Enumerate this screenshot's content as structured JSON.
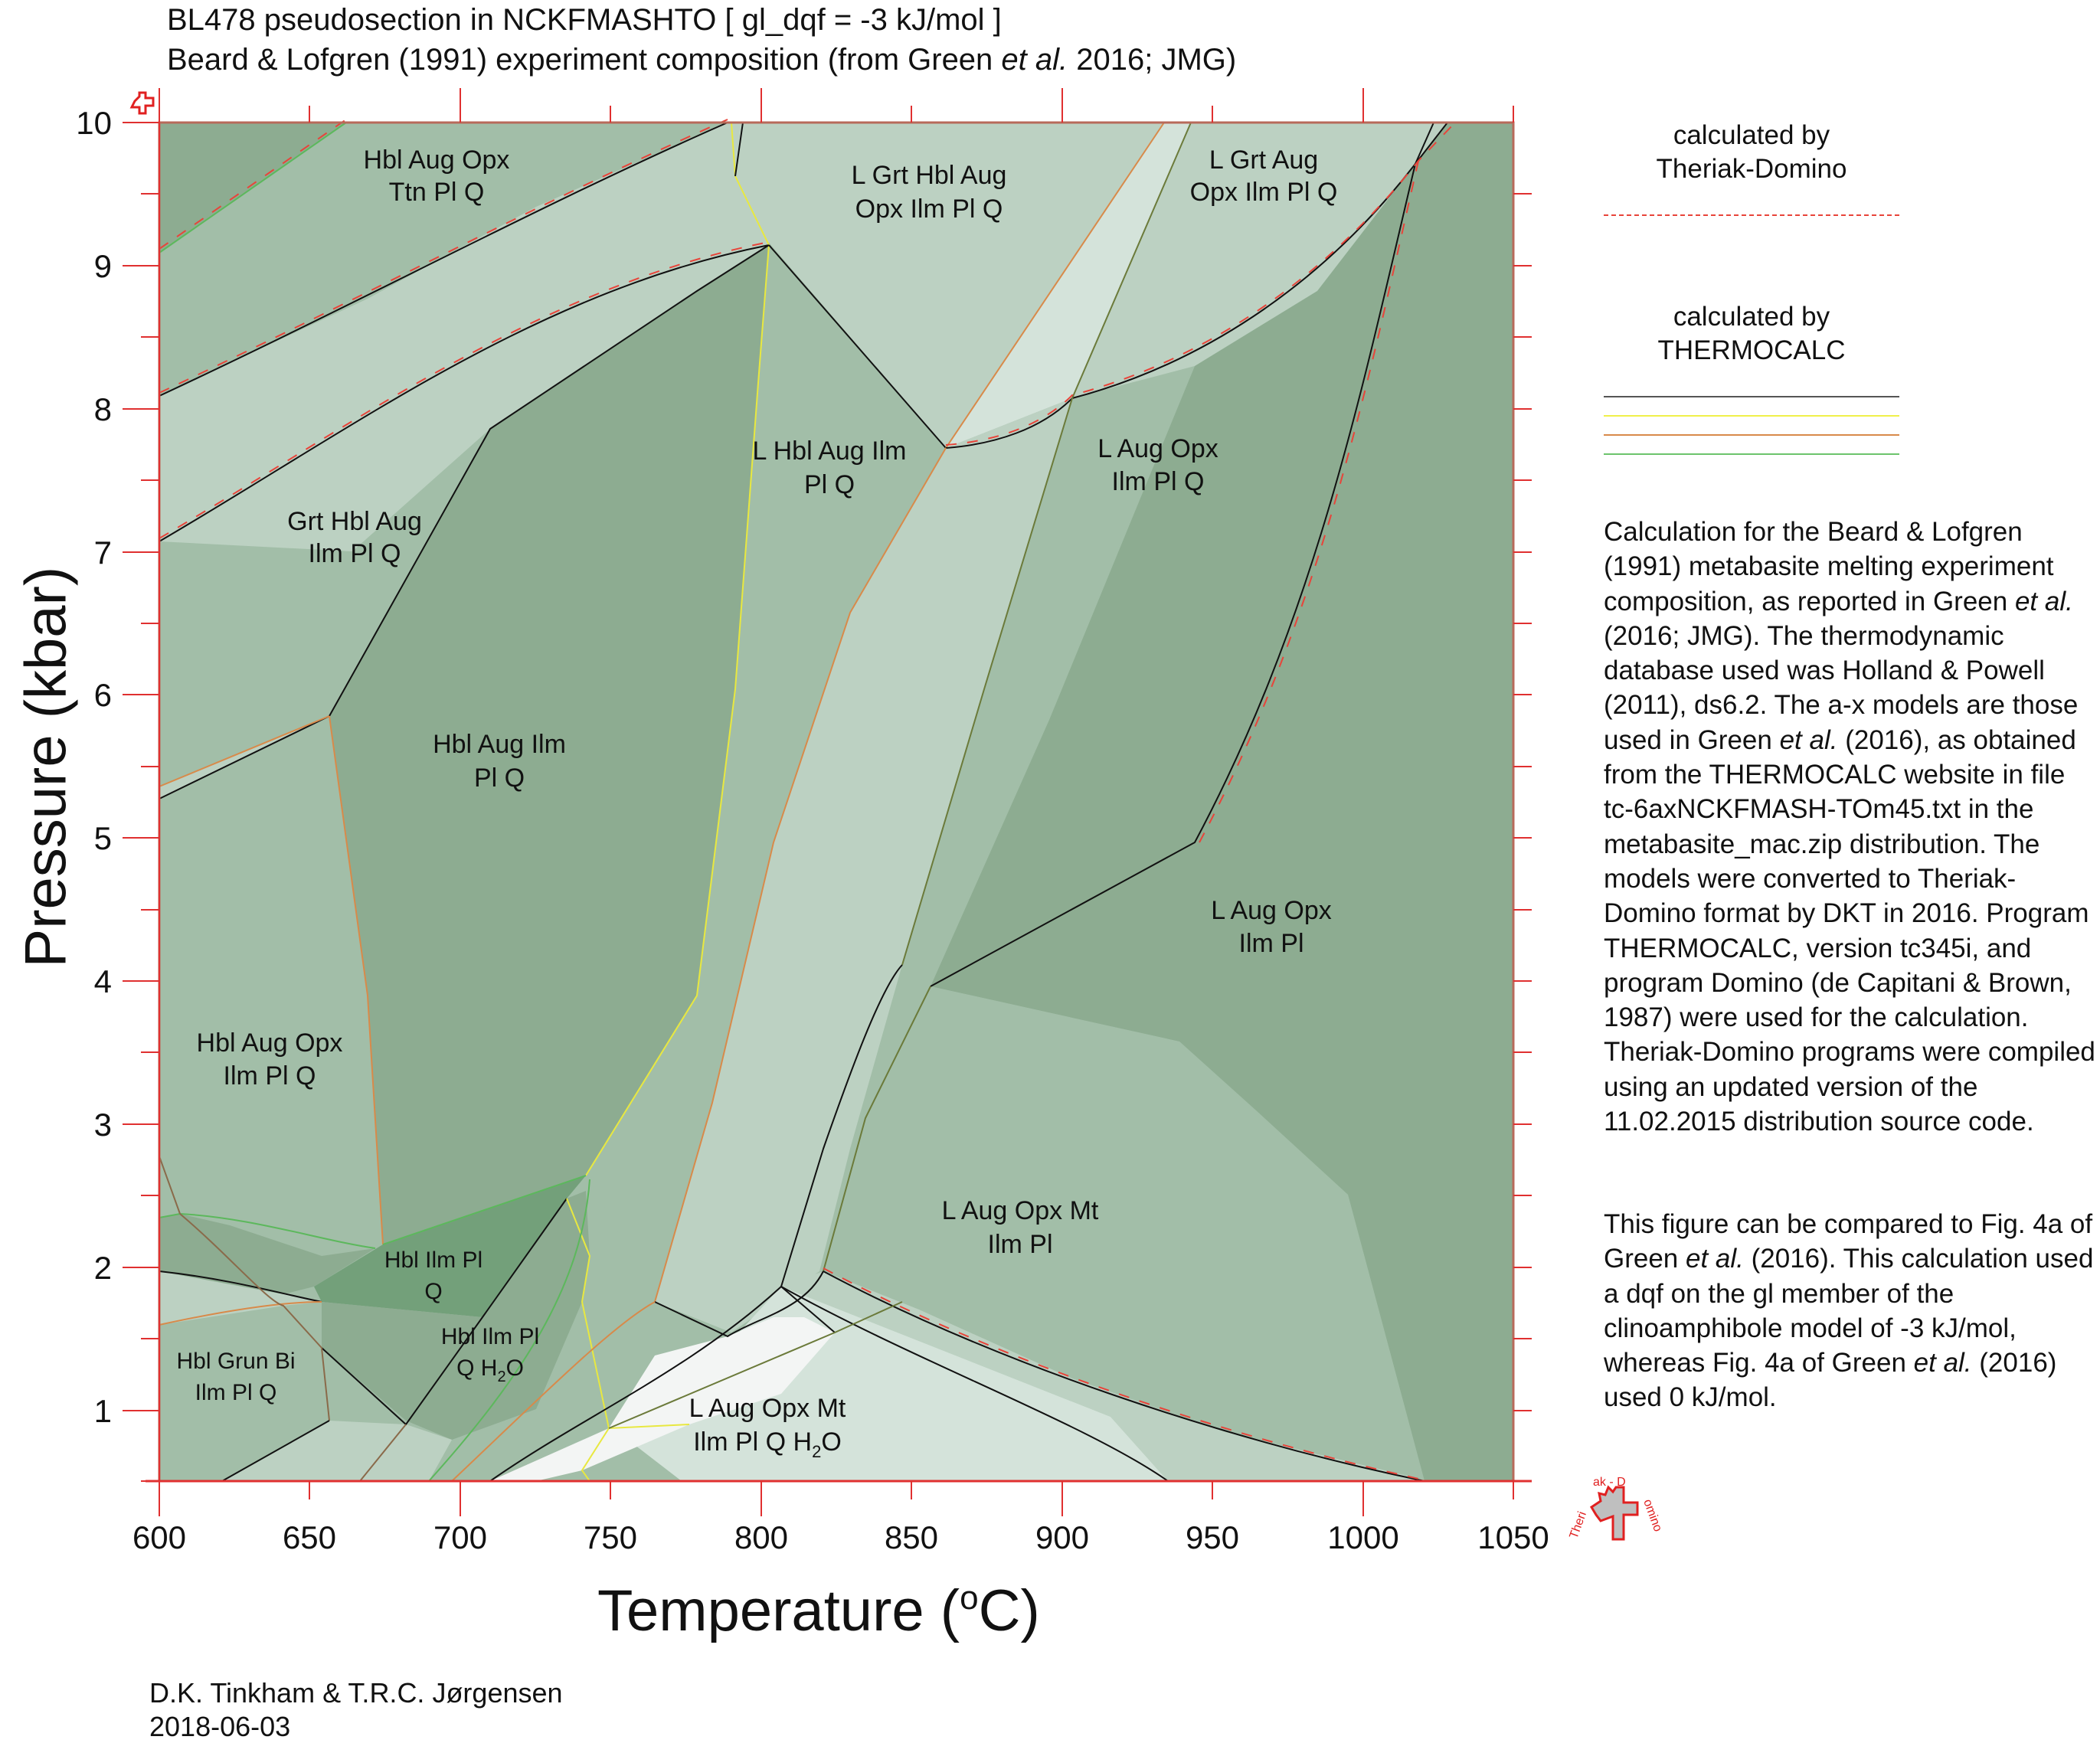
{
  "header": {
    "title_line1": "BL478 pseudosection in NCKFMASHTO [ gl_dqf = -3 kJ/mol ]",
    "title_line2_pre": "Beard & Lofgren (1991) experiment composition (from Green ",
    "title_line2_em": "et al.",
    "title_line2_post": " 2016; JMG)"
  },
  "axes": {
    "xlabel_pre": "Temperature (",
    "xlabel_sup": "o",
    "xlabel_post": "C)",
    "ylabel": "Pressure (kbar)"
  },
  "legend": {
    "td_title_line1": "calculated by",
    "td_title_line2": "Theriak-Domino",
    "tc_title_line1": "calculated by",
    "tc_title_line2": "THERMOCALC",
    "td_line_color": "#e8443a",
    "tc_line_colors": [
      "#555555",
      "#f0f04a",
      "#d88a4a",
      "#6cc46c"
    ]
  },
  "description": {
    "p1_parts": [
      {
        "t": "Calculation for the Beard & Lofgren (1991) metabasite melting experiment composition, as reported in Green "
      },
      {
        "t": "et al.",
        "em": true
      },
      {
        "t": " (2016; JMG). The thermodynamic database used was Holland & Powell (2011), ds6.2. The a-x models are those used in Green "
      },
      {
        "t": "et al.",
        "em": true
      },
      {
        "t": " (2016), as obtained from the THERMOCALC website in file tc-6axNCKFMASH-TOm45.txt in the metabasite_mac.zip distribution. The models were converted to Theriak-Domino format by DKT in 2016. Program THERMOCALC, version tc345i, and program Domino (de Capitani & Brown, 1987) were used for the calculation. Theriak-Domino programs were compiled using an updated version of the 11.02.2015 distribution source code."
      }
    ],
    "p2_parts": [
      {
        "t": "This figure can be compared to Fig. 4a of Green "
      },
      {
        "t": "et al.",
        "em": true
      },
      {
        "t": " (2016). This calculation used a dqf on the gl member of the clinoamphibole model of -3 kJ/mol, whereas Fig. 4a of Green "
      },
      {
        "t": "et al.",
        "em": true
      },
      {
        "t": " (2016) used 0 kJ/mol."
      }
    ]
  },
  "credits": {
    "authors": "D.K. Tinkham & T.R.C. Jørgensen",
    "date": "2018-06-03"
  },
  "logo": {
    "text": "Theriak-Domino",
    "color": "#e02020"
  },
  "colors": {
    "field_darkest": "#73a07a",
    "field_dark": "#8dac91",
    "field_mid": "#a2bea8",
    "field_light": "#bcd1c2",
    "field_lighter": "#d4e3da",
    "field_lightest": "#f3f5f4",
    "axis_red": "#e03030"
  },
  "chart_data": {
    "type": "phase-diagram",
    "title": "BL478 pseudosection in NCKFMASHTO [ gl_dqf = -3 kJ/mol ]",
    "subtitle": "Beard & Lofgren (1991) experiment composition (from Green et al. 2016; JMG)",
    "xlabel": "Temperature (oC)",
    "ylabel": "Pressure (kbar)",
    "xlim": [
      600,
      1050
    ],
    "ylim": [
      0.5,
      10
    ],
    "xticks": [
      600,
      650,
      700,
      750,
      800,
      850,
      900,
      950,
      1000,
      1050
    ],
    "yticks": [
      1,
      2,
      3,
      4,
      5,
      6,
      7,
      8,
      9,
      10
    ],
    "grid": false,
    "legend": [
      {
        "label": "calculated by Theriak-Domino",
        "style": "dashed",
        "color": "#e8443a"
      },
      {
        "label": "calculated by THERMOCALC",
        "style": "solid",
        "colors": [
          "#555555",
          "#f0f04a",
          "#d88a4a",
          "#6cc46c"
        ]
      }
    ],
    "field_labels": [
      {
        "label": "Hbl Aug Opx Ttn Pl Q",
        "T": 695,
        "P": 9.55
      },
      {
        "label": "L Grt Hbl Aug Opx Ilm Pl Q",
        "T": 855,
        "P": 9.3
      },
      {
        "label": "L Grt Aug Opx Ilm Pl Q",
        "T": 970,
        "P": 9.55
      },
      {
        "label": "Grt Hbl Aug Ilm Pl Q",
        "T": 665,
        "P": 7.25
      },
      {
        "label": "L Hbl Aug Ilm Pl Q",
        "T": 823,
        "P": 7.7
      },
      {
        "label": "L Aug Opx Ilm Pl Q",
        "T": 932,
        "P": 7.7
      },
      {
        "label": "Hbl Aug Ilm Pl Q",
        "T": 713,
        "P": 5.65
      },
      {
        "label": "L Aug Opx Ilm Pl",
        "T": 970,
        "P": 4.3
      },
      {
        "label": "Hbl Aug Opx Ilm Pl Q",
        "T": 637,
        "P": 3.0
      },
      {
        "label": "L Aug Opx Mt Ilm Pl",
        "T": 882,
        "P": 2.0
      },
      {
        "label": "Hbl Ilm Pl Q",
        "T": 690,
        "P": 1.9
      },
      {
        "label": "Hbl Ilm Pl Q H2O",
        "T": 710,
        "P": 1.35
      },
      {
        "label": "Hbl Grun Bi Ilm Pl Q",
        "T": 626,
        "P": 1.18
      },
      {
        "label": "L Aug Opx Mt Ilm Pl Q H2O",
        "T": 800,
        "P": 0.9
      }
    ],
    "boundaries": [
      {
        "points": [
          [
            600,
            9.02
          ],
          [
            662,
            10
          ]
        ],
        "color": "green"
      },
      {
        "points": [
          [
            600,
            8.07
          ],
          [
            690,
            8.75
          ],
          [
            790,
            9.62
          ],
          [
            842,
            10
          ]
        ],
        "color": "black"
      },
      {
        "points": [
          [
            600,
            7.07
          ],
          [
            700,
            8.2
          ],
          [
            790,
            9.3
          ],
          [
            803,
            9.15
          ]
        ],
        "color": "black"
      },
      {
        "points": [
          [
            788,
            10
          ],
          [
            790,
            9.6
          ],
          [
            803,
            9.15
          ],
          [
            800,
            8.3
          ],
          [
            785,
            6.4
          ],
          [
            760,
            3.8
          ],
          [
            742,
            2.65
          ]
        ],
        "color": "yellow"
      },
      {
        "points": [
          [
            795,
            10
          ],
          [
            790,
            9.6
          ]
        ],
        "color": "black"
      },
      {
        "points": [
          [
            803,
            9.15
          ],
          [
            865,
            7.75
          ]
        ],
        "color": "black"
      },
      {
        "points": [
          [
            865,
            7.75
          ],
          [
            932,
            10
          ]
        ],
        "color": "orange"
      },
      {
        "points": [
          [
            865,
            7.75
          ],
          [
            890,
            7.7
          ],
          [
            903,
            8.05
          ],
          [
            955,
            8.85
          ],
          [
            1016,
            9.68
          ],
          [
            1033,
            10
          ]
        ],
        "color": "black"
      },
      {
        "points": [
          [
            903,
            8.05
          ],
          [
            942,
            10
          ]
        ],
        "color": "darkolive"
      },
      {
        "points": [
          [
            1016,
            9.68
          ],
          [
            1025,
            10
          ]
        ],
        "color": "black"
      },
      {
        "points": [
          [
            1016,
            9.68
          ],
          [
            985,
            7.5
          ],
          [
            945,
            5.6
          ],
          [
            857,
            4.0
          ]
        ],
        "color": "black"
      },
      {
        "points": [
          [
            865,
            7.75
          ],
          [
            845,
            6.6
          ],
          [
            801,
            4.0
          ],
          [
            771,
            2.5
          ],
          [
            765,
            1.8
          ]
        ],
        "color": "orange"
      },
      {
        "points": [
          [
            803,
            9.15
          ],
          [
            780,
            8.0
          ],
          [
            695,
            6.2
          ],
          [
            656,
            5.85
          ]
        ],
        "color": "black"
      },
      {
        "points": [
          [
            600,
            5.32
          ],
          [
            656,
            5.85
          ]
        ],
        "color": "black"
      },
      {
        "points": [
          [
            600,
            5.42
          ],
          [
            656,
            5.85
          ]
        ],
        "color": "orange"
      },
      {
        "points": [
          [
            656,
            5.85
          ],
          [
            665,
            3.5
          ],
          [
            675,
            2.2
          ]
        ],
        "color": "orange"
      },
      {
        "points": [
          [
            675,
            2.2
          ],
          [
            742,
            2.65
          ]
        ],
        "color": "green"
      },
      {
        "points": [
          [
            738,
            2.55
          ],
          [
            718,
            1.85
          ],
          [
            683,
            1.45
          ],
          [
            656,
            1.0
          ]
        ],
        "color": "black"
      },
      {
        "points": [
          [
            857,
            4.0
          ],
          [
            842,
            3.85
          ],
          [
            800,
            2.2
          ],
          [
            790,
            1.85
          ]
        ],
        "color": "black"
      },
      {
        "points": [
          [
            857,
            4.0
          ],
          [
            860,
            3.5
          ],
          [
            830,
            3.0
          ],
          [
            820,
            1.9
          ]
        ],
        "color": "darkolive"
      },
      {
        "points": [
          [
            863,
            4.0
          ],
          [
            900,
            3.4
          ],
          [
            960,
            2.5
          ],
          [
            1000,
            1.2
          ],
          [
            1020,
            0.5
          ]
        ],
        "color": "black"
      },
      {
        "points": [
          [
            820,
            1.9
          ],
          [
            880,
            1.3
          ],
          [
            960,
            0.85
          ],
          [
            1025,
            0.5
          ]
        ],
        "color": "black"
      },
      {
        "points": [
          [
            807,
            1.75
          ],
          [
            840,
            1.2
          ],
          [
            870,
            0.5
          ]
        ],
        "color": "black"
      },
      {
        "points": [
          [
            752,
            1.0
          ],
          [
            790,
            1.85
          ],
          [
            807,
            1.75
          ],
          [
            820,
            1.9
          ]
        ],
        "color": "black"
      },
      {
        "points": [
          [
            752,
            1.0
          ],
          [
            800,
            1.55
          ],
          [
            830,
            1.9
          ]
        ],
        "color": "darkolive"
      },
      {
        "points": [
          [
            752,
            0.82
          ],
          [
            765,
            0.5
          ],
          [
            775,
            0.5
          ]
        ],
        "color": "yellow"
      }
    ]
  }
}
